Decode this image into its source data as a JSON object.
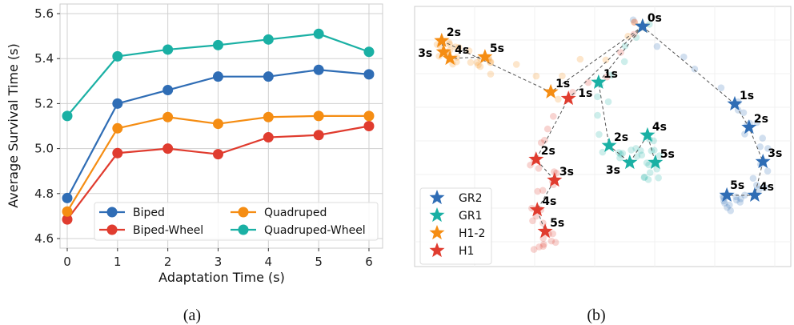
{
  "chart_data": [
    {
      "type": "line",
      "caption": "(a)",
      "xlabel": "Adaptation Time (s)",
      "ylabel": "Average Survival Time (s)",
      "x": [
        0,
        1,
        2,
        3,
        4,
        5,
        6
      ],
      "xticks": [
        "0",
        "1",
        "2",
        "3",
        "4",
        "5",
        "6"
      ],
      "yticks": [
        "4.6",
        "4.8",
        "5.0",
        "5.2",
        "5.4",
        "5.6"
      ],
      "ylim": [
        4.6,
        5.6
      ],
      "xlim": [
        -0.15,
        6.15
      ],
      "grid": true,
      "legend_placement": "lower-right",
      "series": [
        {
          "name": "Biped",
          "color": "#2f6db5",
          "values": [
            4.78,
            5.2,
            5.26,
            5.32,
            5.32,
            5.35,
            5.33
          ]
        },
        {
          "name": "Biped-Wheel",
          "color": "#e03c2f",
          "values": [
            4.685,
            4.98,
            5.0,
            4.975,
            5.05,
            5.06,
            5.1
          ]
        },
        {
          "name": "Quadruped",
          "color": "#f58d13",
          "values": [
            4.72,
            5.09,
            5.14,
            5.11,
            5.14,
            5.145,
            5.145
          ]
        },
        {
          "name": "Quadruped-Wheel",
          "color": "#1ab0a4",
          "values": [
            5.145,
            5.41,
            5.44,
            5.46,
            5.485,
            5.51,
            5.43
          ]
        }
      ],
      "legend_order": [
        0,
        2,
        1,
        3
      ]
    },
    {
      "type": "scatter",
      "caption": "(b)",
      "xlim": [
        0,
        100
      ],
      "ylim": [
        0,
        100
      ],
      "grid": true,
      "legend_placement": "lower-left",
      "point_labels": [
        "0s",
        "1s",
        "2s",
        "3s",
        "4s",
        "5s"
      ],
      "series": [
        {
          "name": "GR2",
          "color": "#2f6db5",
          "points": [
            [
              60.6,
              92.3
            ],
            [
              85.1,
              62.5
            ],
            [
              88.9,
              53.5
            ],
            [
              92.6,
              40.3
            ],
            [
              90.4,
              27.4
            ],
            [
              83.0,
              27.4
            ]
          ]
        },
        {
          "name": "GR1",
          "color": "#1ab0a4",
          "points": [
            [
              60.6,
              92.3
            ],
            [
              48.9,
              70.8
            ],
            [
              51.7,
              46.5
            ],
            [
              57.2,
              40.0
            ],
            [
              61.9,
              50.5
            ],
            [
              64.0,
              40.0
            ]
          ]
        },
        {
          "name": "H1-2",
          "color": "#f58d13",
          "points": [
            [
              60.6,
              92.3
            ],
            [
              36.2,
              67.1
            ],
            [
              7.2,
              86.8
            ],
            [
              7.7,
              82.5
            ],
            [
              9.4,
              80.0
            ],
            [
              18.7,
              80.6
            ]
          ]
        },
        {
          "name": "H1",
          "color": "#e03c2f",
          "points": [
            [
              60.6,
              92.3
            ],
            [
              40.9,
              64.6
            ],
            [
              32.3,
              41.2
            ],
            [
              37.2,
              33.2
            ],
            [
              32.6,
              21.8
            ],
            [
              34.7,
              13.5
            ]
          ]
        }
      ]
    }
  ]
}
